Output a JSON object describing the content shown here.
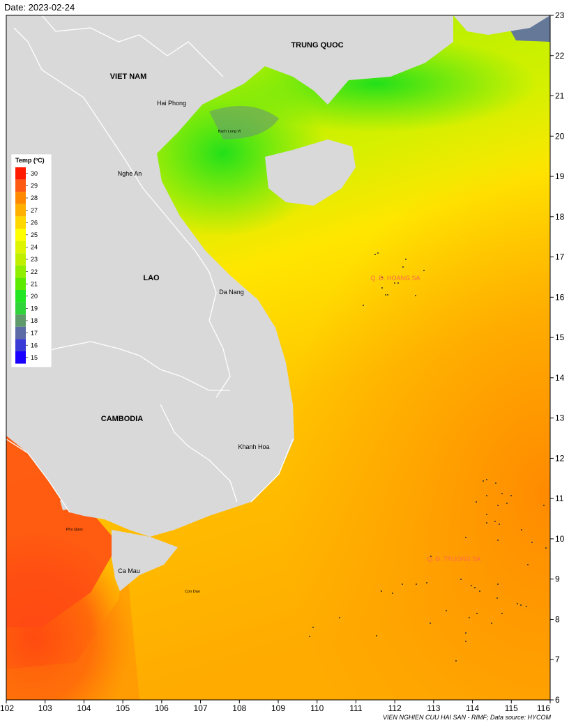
{
  "header": {
    "date_label": "Date: 2023-02-24"
  },
  "footer": {
    "credit": "VIEN NGHIEN CUU HAI SAN - RIMF; Data source: HYCOM"
  },
  "legend": {
    "title": "Temp (ºC)",
    "values": [
      "30",
      "29",
      "28",
      "27",
      "26",
      "25",
      "24",
      "23",
      "22",
      "21",
      "20",
      "19",
      "18",
      "17",
      "16",
      "15"
    ],
    "colors": [
      "#ff1a00",
      "#ff5a14",
      "#ff8800",
      "#ffb000",
      "#ffd800",
      "#ffff00",
      "#ddf500",
      "#c0f000",
      "#90ee00",
      "#5cea00",
      "#22e622",
      "#2ed43a",
      "#5e9a6a",
      "#5c6aa6",
      "#3a3ad6",
      "#1a00ff"
    ]
  },
  "axes": {
    "x_ticks": [
      "102",
      "103",
      "104",
      "105",
      "106",
      "107",
      "108",
      "109",
      "110",
      "111",
      "112",
      "113",
      "114",
      "115",
      "116"
    ],
    "y_ticks": [
      "23",
      "22",
      "21",
      "20",
      "19",
      "18",
      "17",
      "16",
      "15",
      "14",
      "13",
      "12",
      "11",
      "10",
      "9",
      "8",
      "7",
      "6"
    ]
  },
  "labels": {
    "countries": {
      "china": "TRUNG QUOC",
      "vietnam": "VIET NAM",
      "laos": "LAO",
      "cambodia": "CAMBODIA"
    },
    "cities": {
      "hai_phong": "Hai Phong",
      "bach_long_vi": "Bach Long Vi",
      "nghe_an": "Nghe An",
      "da_nang": "Da Nang",
      "khanh_hoa": "Khanh Hoa",
      "phu_quoc": "Phu Quoc",
      "ca_mau": "Ca Mau",
      "con_dao": "Con Dao"
    },
    "archipelagos": {
      "hoang_sa": "Q. Đ. HOANG SA",
      "truong_sa": "Q. Đ. TRUONG SA"
    }
  },
  "colors": {
    "land": "#d9d9d9",
    "border": "#ffffff",
    "sea_warm": "#ff9a00",
    "sea_mid": "#ffd200",
    "sea_cool": "#c8f000",
    "sea_cold": "#3ee61a"
  }
}
